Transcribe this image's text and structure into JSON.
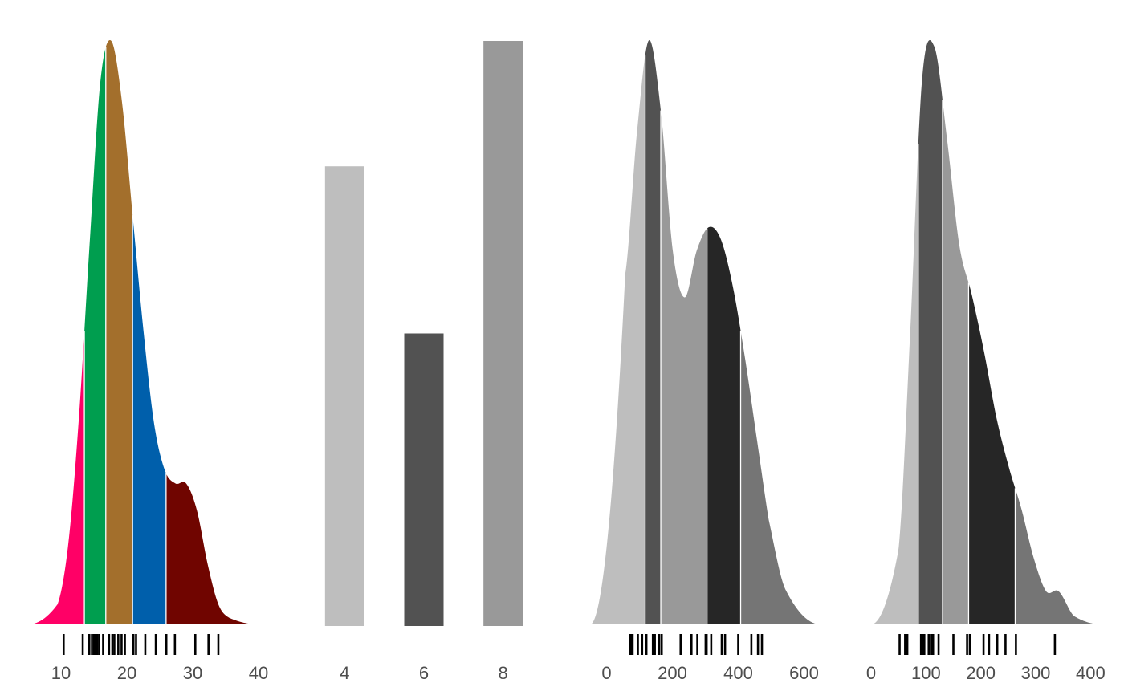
{
  "chart_data": [
    {
      "type": "area",
      "subtype": "density-colored-by-quantile",
      "xlim": [
        5,
        40
      ],
      "xticks": [
        "10",
        "20",
        "30",
        "40"
      ],
      "grid": false,
      "band_colors": [
        "#ff0066",
        "#009e4f",
        "#a36f2c",
        "#005fab",
        "#700500"
      ],
      "density": {
        "x": [
          10.4,
          12.0,
          13.6,
          15.2,
          16.8,
          18.4,
          20.0,
          21.6,
          23.2,
          24.8,
          26.4,
          28.0,
          29.6,
          31.2,
          32.8,
          34.4,
          36.0
        ],
        "y": [
          0.003,
          0.012,
          0.031,
          0.057,
          0.081,
          0.087,
          0.078,
          0.061,
          0.044,
          0.03,
          0.023,
          0.021,
          0.021,
          0.017,
          0.009,
          0.003,
          0.001
        ]
      },
      "quantile_breaks": [
        10.4,
        14.4,
        17.6,
        21.6,
        26.6,
        33.9
      ],
      "rug": [
        10.4,
        13.3,
        14.3,
        14.7,
        15.0,
        15.2,
        15.5,
        15.8,
        16.4,
        17.3,
        17.8,
        18.1,
        18.7,
        19.2,
        19.7,
        21.0,
        21.4,
        22.8,
        24.4,
        26.0,
        27.3,
        30.4,
        32.4,
        33.9
      ]
    },
    {
      "type": "bar",
      "categories": [
        "4",
        "6",
        "8"
      ],
      "values": [
        11,
        7,
        14
      ],
      "bar_colors": [
        "#bebebe",
        "#525252",
        "#999999"
      ],
      "grid": false
    },
    {
      "type": "area",
      "subtype": "density-colored-by-quantile",
      "xlim": [
        -50,
        650
      ],
      "xticks": [
        "0",
        "200",
        "400",
        "600"
      ],
      "grid": false,
      "band_colors": [
        "#bebebe",
        "#525252",
        "#999999",
        "#262626",
        "#757575"
      ],
      "density": {
        "x": [
          71,
          100,
          130,
          160,
          190,
          220,
          250,
          280,
          310,
          340,
          370,
          400,
          430,
          472
        ],
        "y": [
          0.003,
          0.0042,
          0.005,
          0.0044,
          0.0032,
          0.0028,
          0.0032,
          0.0034,
          0.0033,
          0.0029,
          0.0023,
          0.0016,
          0.0009,
          0.0003
        ]
      },
      "quantile_breaks": [
        71.1,
        120.8,
        160.0,
        275.8,
        360.0,
        472.0
      ],
      "rug": [
        71.1,
        75.7,
        78.7,
        79.0,
        95.1,
        108.0,
        120.1,
        120.3,
        121.0,
        140.8,
        145.0,
        146.7,
        160.0,
        167.6,
        225.0,
        258.0,
        275.8,
        301.0,
        304.0,
        318.0,
        350.0,
        351.0,
        360.0,
        400.0,
        440.0,
        460.0,
        472.0
      ]
    },
    {
      "type": "area",
      "subtype": "density-colored-by-quantile",
      "xlim": [
        0,
        420
      ],
      "xticks": [
        "0",
        "100",
        "200",
        "300",
        "400"
      ],
      "grid": false,
      "band_colors": [
        "#bebebe",
        "#525252",
        "#999999",
        "#262626",
        "#757575"
      ],
      "density": {
        "x": [
          52,
          70,
          90,
          110,
          130,
          150,
          170,
          190,
          210,
          230,
          250,
          270,
          290,
          310,
          335
        ],
        "y": [
          0.0009,
          0.0034,
          0.0066,
          0.007,
          0.0059,
          0.0046,
          0.004,
          0.0033,
          0.0025,
          0.0019,
          0.0014,
          0.0008,
          0.0004,
          0.0004,
          0.0001
        ]
      },
      "quantile_breaks": [
        52,
        84,
        123,
        165,
        240,
        335
      ],
      "rug": [
        52,
        62,
        65,
        66,
        91,
        93,
        95,
        97,
        105,
        109,
        110,
        113,
        123,
        150,
        175,
        180,
        205,
        215,
        230,
        245,
        264,
        335
      ]
    }
  ]
}
